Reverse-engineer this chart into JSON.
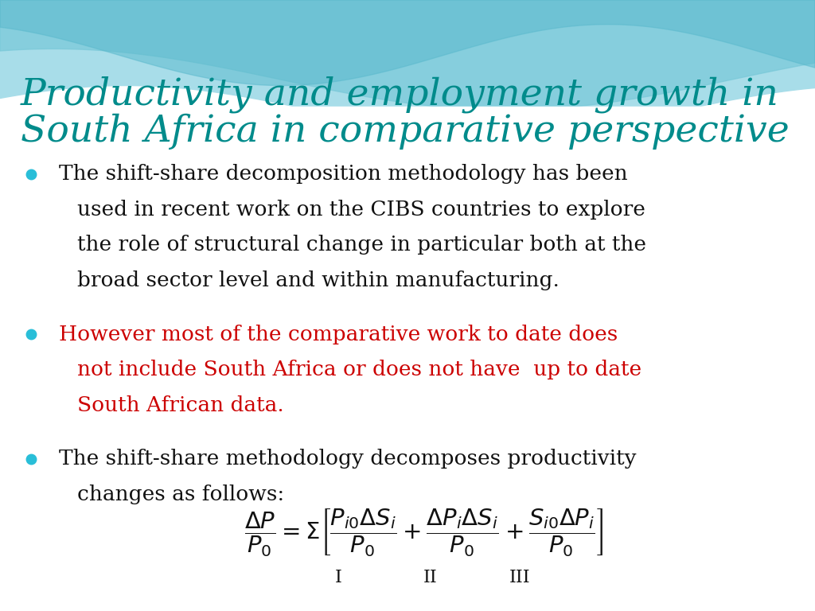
{
  "title_line1": "Productivity and employment growth in",
  "title_line2": "South Africa in comparative perspective",
  "title_color": "#008B8B",
  "bullet_color": "#29BED8",
  "bullet1_text_lines": [
    "The shift-share decomposition methodology has been",
    "used in recent work on the CIBS countries to explore",
    "the role of structural change in particular both at the",
    "broad sector level and within manufacturing."
  ],
  "bullet1_color": "#111111",
  "bullet2_text_lines": [
    "However most of the comparative work to date does",
    "not include South Africa or does not have  up to date",
    "South African data."
  ],
  "bullet2_color": "#CC0000",
  "bullet3_text_lines": [
    "The shift-share methodology decomposes productivity",
    "changes as follows:"
  ],
  "bullet3_color": "#111111",
  "background_color": "#FFFFFF",
  "title_fontsize": 34,
  "body_fontsize": 19,
  "label_fontsize": 16
}
